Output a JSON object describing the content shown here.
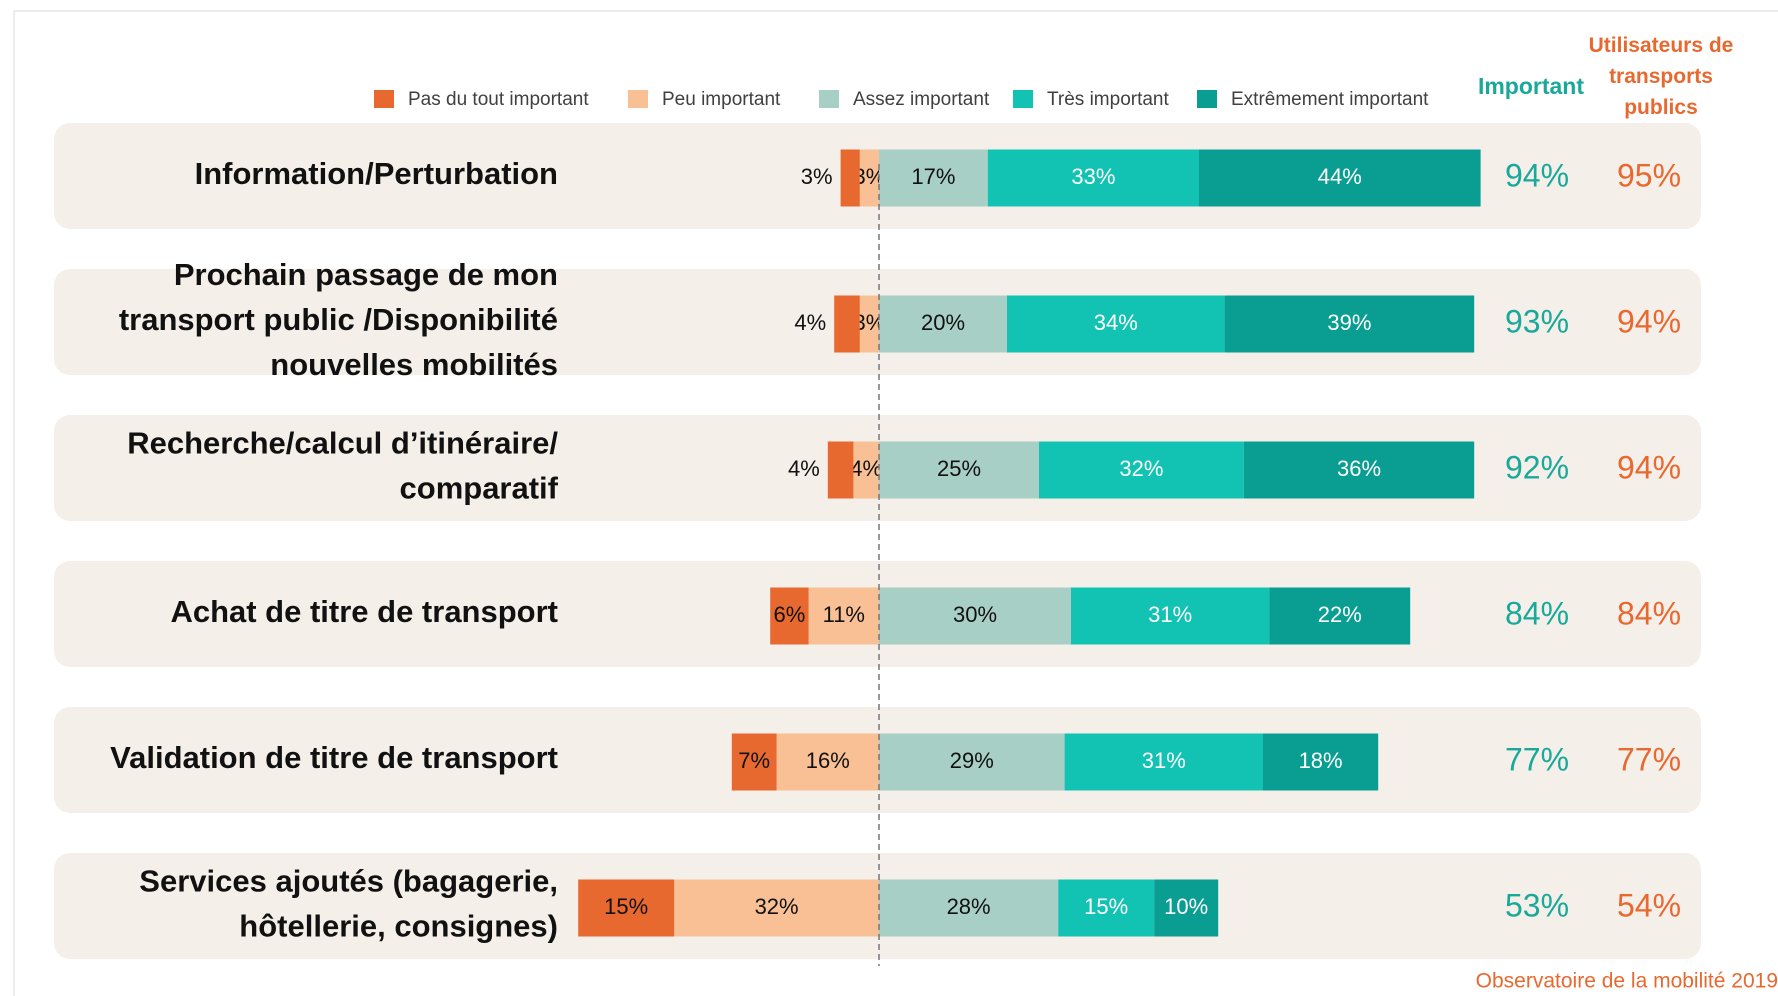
{
  "chart_data": {
    "type": "diverging-bar",
    "categories": [
      "Information/Perturbation",
      "Prochain passage de mon\ntransport public /Disponibilité\nnouvelles mobilités",
      "Recherche/calcul d’itinéraire/\ncomparatif",
      "Achat de titre de transport",
      "Validation de titre de transport",
      "Services ajoutés (bagagerie,\nhôtellerie, consignes)"
    ],
    "xlim": [
      -50,
      100
    ],
    "series": [
      {
        "name": "Pas du tout important",
        "color": "#e8692f",
        "side": "negative",
        "values": [
          3,
          4,
          4,
          6,
          7,
          15
        ],
        "value_labels": [
          "3%",
          "4%",
          "4%",
          "6%",
          "7%",
          "15%"
        ]
      },
      {
        "name": "Peu important",
        "color": "#f8c094",
        "side": "negative",
        "values": [
          3,
          3,
          4,
          11,
          16,
          32
        ],
        "value_labels": [
          "3%",
          "3%",
          "4%",
          "11%",
          "16%",
          "32%"
        ]
      },
      {
        "name": "Assez important",
        "color": "#a8cfc6",
        "side": "positive",
        "values": [
          17,
          20,
          25,
          30,
          29,
          28
        ],
        "value_labels": [
          "17%",
          "20%",
          "25%",
          "30%",
          "29%",
          "28%"
        ]
      },
      {
        "name": "Très important",
        "color": "#12c3b3",
        "side": "positive",
        "values": [
          33,
          34,
          32,
          31,
          31,
          15
        ],
        "value_labels": [
          "33%",
          "34%",
          "32%",
          "31%",
          "31%",
          "15%"
        ]
      },
      {
        "name": "Extrêmement important",
        "color": "#0a9e92",
        "side": "positive",
        "values": [
          44,
          39,
          36,
          22,
          18,
          10
        ],
        "value_labels": [
          "44%",
          "39%",
          "36%",
          "22%",
          "18%",
          "10%"
        ]
      }
    ],
    "columns": [
      {
        "header": "Important",
        "color": "#1aa89a",
        "values": [
          94,
          93,
          92,
          84,
          77,
          53
        ],
        "value_labels": [
          "94%",
          "93%",
          "92%",
          "84%",
          "77%",
          "53%"
        ]
      },
      {
        "header": "Utilisateurs de\ntransports\npublics",
        "color": "#e8692f",
        "values": [
          95,
          94,
          94,
          84,
          77,
          54
        ],
        "value_labels": [
          "95%",
          "94%",
          "94%",
          "84%",
          "77%",
          "54%"
        ]
      }
    ],
    "source": "Observatoire de la mobilité 2019"
  }
}
